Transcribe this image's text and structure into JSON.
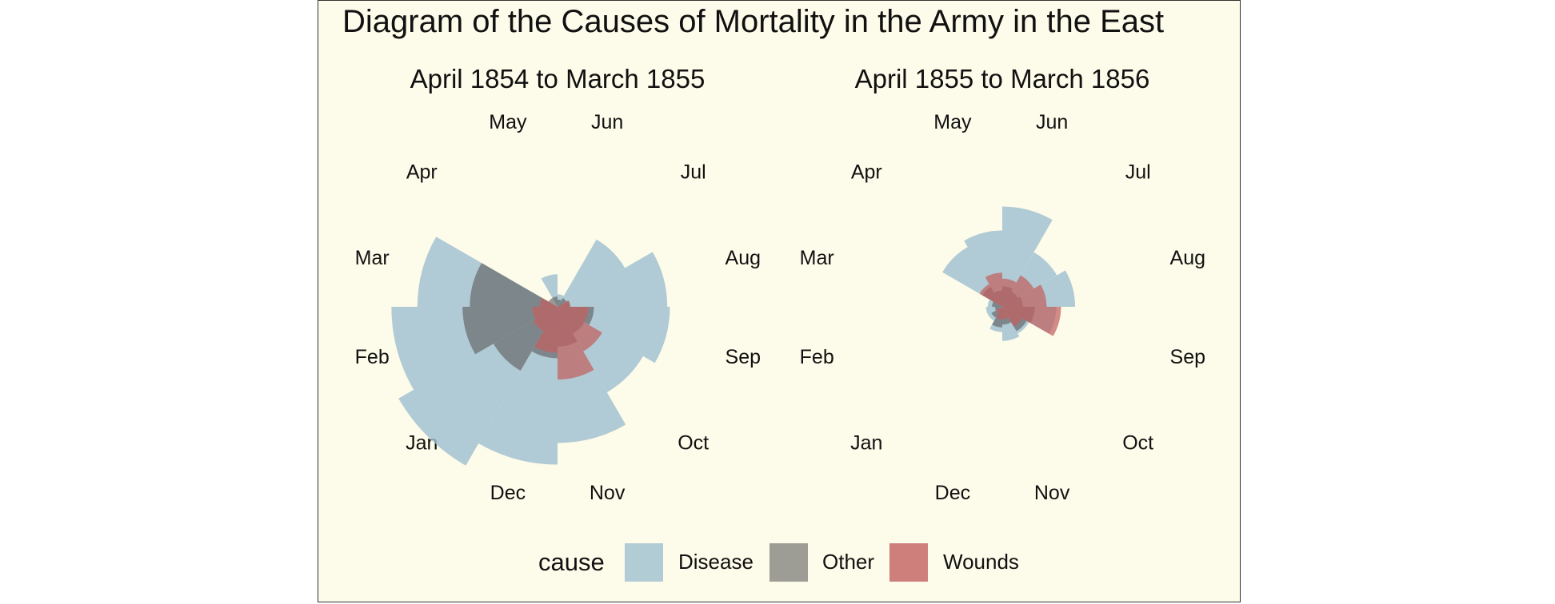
{
  "chart_data": {
    "type": "polar-area",
    "title": "Diagram of the Causes of Mortality in the Army in the East",
    "months": [
      "Jun",
      "Jul",
      "Aug",
      "Sep",
      "Oct",
      "Nov",
      "Dec",
      "Jan",
      "Feb",
      "Mar",
      "Apr",
      "May"
    ],
    "facets": [
      {
        "title": "April 1854 to March 1855",
        "series": [
          {
            "name": "Disease",
            "values": [
              0.3,
              11.4,
              22.7,
              23.8,
              18.4,
              35.0,
              47.0,
              63.5,
              52.0,
              37.0,
              0.0,
              2.0
            ]
          },
          {
            "name": "Other",
            "values": [
              0.1,
              0.2,
              0.3,
              2.5,
              1.8,
              3.0,
              5.0,
              10.3,
              17.0,
              14.5,
              0.2,
              0.2
            ]
          },
          {
            "name": "Wounds",
            "values": [
              0.0,
              0.0,
              0.3,
              1.8,
              5.0,
              10.0,
              4.0,
              1.5,
              1.2,
              0.6,
              0.0,
              0.0
            ]
          }
        ]
      },
      {
        "title": "April 1855 to March 1856",
        "series": [
          {
            "name": "Disease",
            "values": [
              19.0,
              7.5,
              10.0,
              5.5,
              1.8,
              2.2,
              1.2,
              0.5,
              0.5,
              0.4,
              9.0,
              11.0
            ]
          },
          {
            "name": "Other",
            "values": [
              0.8,
              0.6,
              0.8,
              2.0,
              1.5,
              0.6,
              0.8,
              0.3,
              0.1,
              0.2,
              1.0,
              0.5
            ]
          },
          {
            "name": "Wounds",
            "values": [
              1.5,
              2.5,
              3.7,
              6.5,
              1.0,
              0.3,
              0.3,
              0.1,
              0.0,
              0.0,
              1.3,
              2.2
            ]
          }
        ]
      }
    ],
    "legend": {
      "title": "cause",
      "position": "bottom",
      "entries": [
        "Disease",
        "Other",
        "Wounds"
      ]
    },
    "scale": "sqrt",
    "colors": {
      "Disease": "#9fc0d1",
      "Other": "#5e5e5e",
      "Wounds": "#c26060",
      "background": "#fdfbe9"
    }
  }
}
